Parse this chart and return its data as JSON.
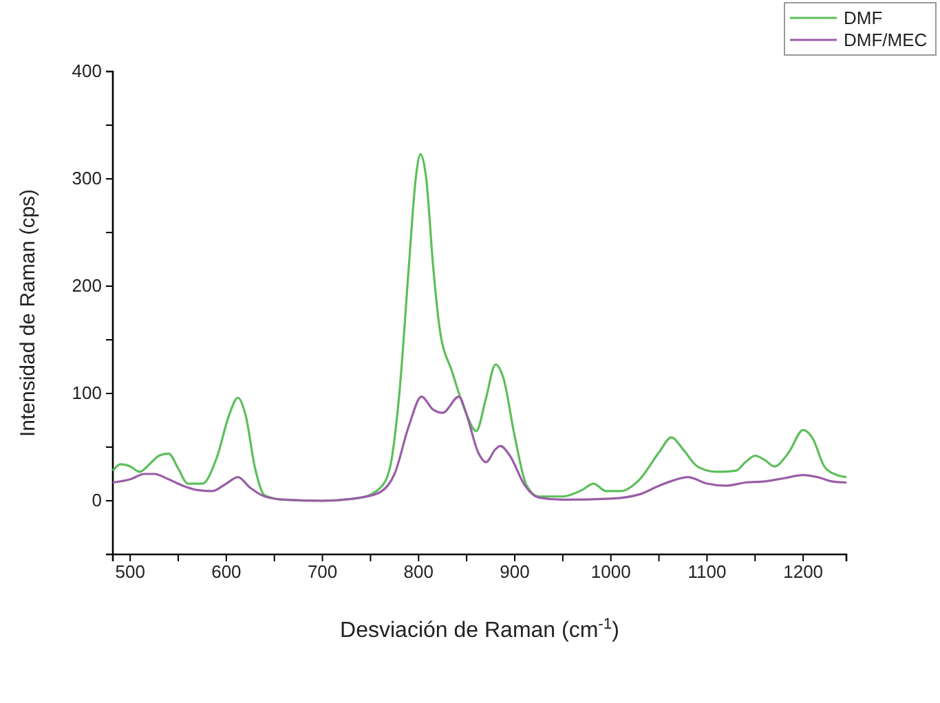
{
  "chart_data": {
    "type": "line",
    "xlabel": "Desviación de Raman (cm$^{-1}$)",
    "ylabel": "Intensidad de Raman (cps)",
    "xlim": [
      482,
      1245
    ],
    "ylim": [
      -50,
      400
    ],
    "xticks": [
      500,
      {
        "value": 550,
        "label": null
      },
      600,
      {
        "value": 650,
        "label": null
      },
      700,
      {
        "value": 750,
        "label": null
      },
      800,
      {
        "value": 850,
        "label": null
      },
      900,
      {
        "value": 950,
        "label": null
      },
      1000,
      {
        "value": 1050,
        "label": null
      },
      1100,
      {
        "value": 1150,
        "label": null
      },
      1200
    ],
    "yticks": [
      {
        "value": -50,
        "label": null
      },
      0,
      {
        "value": 50,
        "label": null
      },
      100,
      {
        "value": 150,
        "label": null
      },
      200,
      {
        "value": 250,
        "label": null
      },
      300,
      {
        "value": 350,
        "label": null
      },
      400
    ],
    "legend": "top right",
    "grid": false,
    "line_style": "solid",
    "marker": "none",
    "series": [
      {
        "name": "DMF",
        "color": "#5cbf5a",
        "x": [
          482,
          490,
          500,
          510,
          520,
          530,
          540,
          550,
          560,
          575,
          590,
          603,
          612,
          620,
          630,
          640,
          660,
          700,
          740,
          760,
          770,
          780,
          790,
          797,
          802,
          808,
          815,
          822,
          835,
          848,
          860,
          870,
          880,
          888,
          900,
          912,
          925,
          950,
          970,
          982,
          995,
          1010,
          1030,
          1050,
          1063,
          1075,
          1090,
          1110,
          1130,
          1140,
          1150,
          1160,
          1170,
          1185,
          1200,
          1210,
          1222,
          1235,
          1245
        ],
        "values": [
          28,
          34,
          32,
          27,
          34,
          42,
          44,
          30,
          16,
          16,
          40,
          80,
          96,
          80,
          30,
          5,
          1,
          0,
          3,
          12,
          30,
          100,
          220,
          300,
          323,
          300,
          220,
          160,
          120,
          85,
          65,
          95,
          127,
          115,
          60,
          15,
          4,
          4,
          10,
          16,
          9,
          9,
          20,
          45,
          59,
          48,
          32,
          27,
          28,
          36,
          42,
          38,
          32,
          45,
          66,
          58,
          32,
          24,
          22
        ]
      },
      {
        "name": "DMF/MEC",
        "color": "#9a5ea6",
        "x": [
          482,
          500,
          515,
          525,
          540,
          555,
          570,
          585,
          600,
          612,
          625,
          640,
          660,
          700,
          740,
          760,
          775,
          790,
          803,
          815,
          825,
          842,
          850,
          862,
          870,
          880,
          885,
          895,
          910,
          925,
          950,
          1000,
          1030,
          1050,
          1065,
          1080,
          1100,
          1120,
          1140,
          1160,
          1180,
          1200,
          1215,
          1230,
          1245
        ],
        "values": [
          17,
          20,
          25,
          25,
          20,
          14,
          10,
          9,
          16,
          22,
          12,
          4,
          1,
          0,
          3,
          8,
          25,
          70,
          97,
          85,
          82,
          97,
          80,
          45,
          36,
          48,
          51,
          42,
          15,
          3,
          1,
          2,
          6,
          14,
          19,
          22,
          16,
          14,
          17,
          18,
          21,
          24,
          22,
          18,
          17
        ]
      }
    ]
  }
}
